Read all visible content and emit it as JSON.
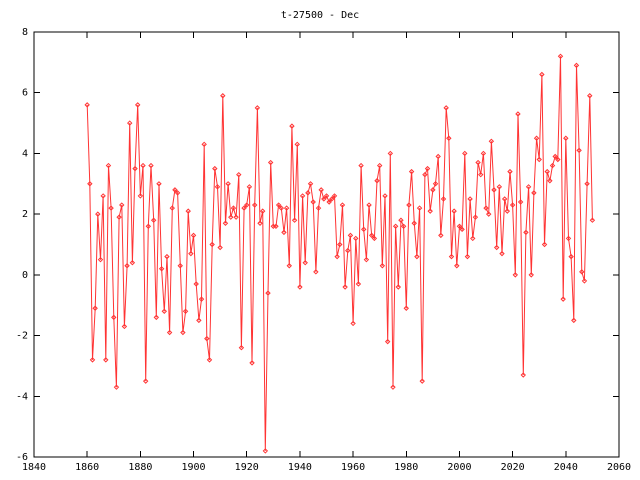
{
  "chart_data": {
    "type": "line",
    "title": "t-27500 - Dec",
    "x": [
      1860,
      1861,
      1862,
      1863,
      1864,
      1865,
      1866,
      1867,
      1868,
      1869,
      1870,
      1871,
      1872,
      1873,
      1874,
      1875,
      1876,
      1877,
      1878,
      1879,
      1880,
      1881,
      1882,
      1883,
      1884,
      1885,
      1886,
      1887,
      1888,
      1889,
      1890,
      1891,
      1892,
      1893,
      1894,
      1895,
      1896,
      1897,
      1898,
      1899,
      1900,
      1901,
      1902,
      1903,
      1904,
      1905,
      1906,
      1907,
      1908,
      1909,
      1910,
      1911,
      1912,
      1913,
      1914,
      1915,
      1916,
      1917,
      1918,
      1919,
      1920,
      1921,
      1922,
      1923,
      1924,
      1925,
      1926,
      1927,
      1928,
      1929,
      1930,
      1931,
      1932,
      1933,
      1934,
      1935,
      1936,
      1937,
      1938,
      1939,
      1940,
      1941,
      1942,
      1943,
      1944,
      1945,
      1946,
      1947,
      1948,
      1949,
      1950,
      1951,
      1952,
      1953,
      1954,
      1955,
      1956,
      1957,
      1958,
      1959,
      1960,
      1961,
      1962,
      1963,
      1964,
      1965,
      1966,
      1967,
      1968,
      1969,
      1970,
      1971,
      1972,
      1973,
      1974,
      1975,
      1976,
      1977,
      1978,
      1979,
      1980,
      1981,
      1982,
      1983,
      1984,
      1985,
      1986,
      1987,
      1988,
      1989,
      1990,
      1991,
      1992,
      1993,
      1994,
      1995,
      1996,
      1997,
      1998,
      1999,
      2000,
      2001,
      2002,
      2003,
      2004,
      2005,
      2006,
      2007,
      2008,
      2009,
      2010,
      2011,
      2012,
      2013,
      2014,
      2015,
      2016,
      2017,
      2018,
      2019,
      2020,
      2021,
      2022,
      2023,
      2024,
      2025,
      2026,
      2027,
      2028,
      2029,
      2030,
      2031,
      2032,
      2033,
      2034,
      2035,
      2036,
      2037,
      2038,
      2039,
      2040,
      2041,
      2042,
      2043,
      2044,
      2045,
      2046,
      2047,
      2048,
      2049,
      2050
    ],
    "series": [
      {
        "color": "#ff3333",
        "values": [
          5.6,
          3.0,
          -2.8,
          -1.1,
          2.0,
          0.5,
          2.6,
          -2.8,
          3.6,
          2.2,
          -1.4,
          -3.7,
          1.9,
          2.3,
          -1.7,
          0.3,
          5.0,
          0.4,
          3.5,
          5.6,
          2.6,
          3.6,
          -3.5,
          1.6,
          3.6,
          1.8,
          -1.4,
          3.0,
          0.2,
          -1.2,
          0.6,
          -1.9,
          2.2,
          2.8,
          2.7,
          0.3,
          -1.9,
          -1.2,
          2.1,
          0.7,
          1.3,
          -0.3,
          -1.5,
          -0.8,
          4.3,
          -2.1,
          -2.8,
          1.0,
          3.5,
          2.9,
          0.9,
          5.9,
          1.7,
          3.0,
          1.9,
          2.2,
          1.9,
          3.3,
          -2.4,
          2.2,
          2.3,
          2.9,
          -2.9,
          2.3,
          5.5,
          1.7,
          2.1,
          -5.8,
          -0.6,
          3.7,
          1.6,
          1.6,
          2.3,
          2.2,
          1.4,
          2.2,
          0.3,
          4.9,
          1.8,
          4.3,
          -0.4,
          2.6,
          0.4,
          2.7,
          3.0,
          2.4,
          0.1,
          2.2,
          2.8,
          2.5,
          2.6,
          2.4,
          2.5,
          2.6,
          0.6,
          1.0,
          2.3,
          -0.4,
          0.8,
          1.3,
          -1.6,
          1.2,
          -0.3,
          3.6,
          1.5,
          0.5,
          2.3,
          1.3,
          1.2,
          3.1,
          3.6,
          0.3,
          2.6,
          -2.2,
          4.0,
          -3.7,
          1.6,
          -0.4,
          1.8,
          1.6,
          -1.1,
          2.3,
          3.4,
          1.7,
          0.6,
          2.2,
          -3.5,
          3.3,
          3.5,
          2.1,
          2.8,
          3.0,
          3.9,
          1.3,
          2.5,
          5.5,
          4.5,
          0.6,
          2.1,
          0.3,
          1.6,
          1.5,
          4.0,
          0.6,
          2.5,
          1.2,
          1.9,
          3.7,
          3.3,
          4.0,
          2.2,
          2.0,
          4.4,
          2.8,
          0.9,
          2.9,
          0.7,
          2.5,
          2.1,
          3.4,
          2.3,
          0.0,
          5.3,
          2.4,
          -3.3,
          1.4,
          2.9,
          0.0,
          2.7,
          4.5,
          3.8,
          6.6,
          1.0,
          3.4,
          3.1,
          3.6,
          3.9,
          3.8,
          7.2,
          -0.8,
          4.5,
          1.2,
          0.6,
          -1.5,
          6.9,
          4.1,
          0.1,
          -0.2,
          3.0,
          5.9,
          1.8
        ]
      }
    ],
    "xlim": [
      1840,
      2060
    ],
    "xticks": [
      1840,
      1860,
      1880,
      1900,
      1920,
      1940,
      1960,
      1980,
      2000,
      2020,
      2040,
      2060
    ],
    "ylim": [
      -6,
      8
    ],
    "yticks": [
      -6,
      -4,
      -2,
      0,
      2,
      4,
      6,
      8
    ]
  }
}
